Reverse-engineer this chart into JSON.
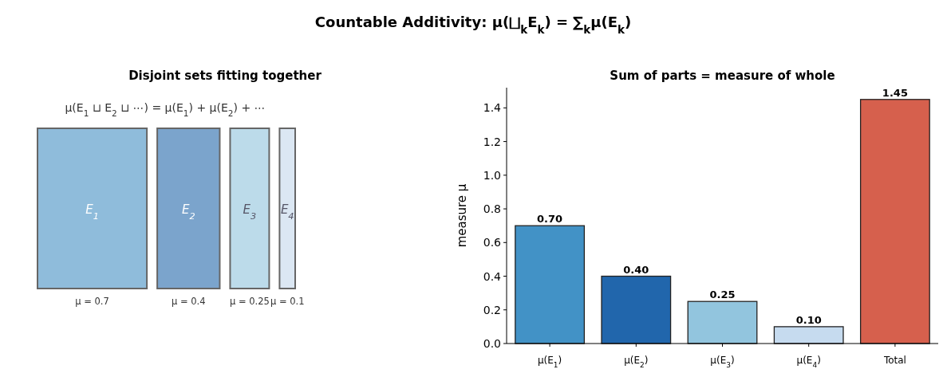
{
  "chart_data": [
    {
      "type": "other",
      "title": "Disjoint sets fitting together",
      "annotations": [
        "Countable Additivity: μ(⨆$_{k}$E$_{k}$) = ∑$_{k}$μ(E$_{k}$)",
        "μ(E$_{1}$ ⊔ E$_{2}$ ⊔ ⋯) = μ(E$_{1}$) + μ(E$_{2}$) + ⋯"
      ],
      "categories": [
        "E$_{1}$",
        "E$_{2}$",
        "E$_{3}$",
        "E$_{4}$"
      ],
      "values": [
        0.7,
        0.4,
        0.25,
        0.1
      ],
      "value_labels": [
        "μ = 0.7",
        "μ = 0.4",
        "μ = 0.25",
        "μ = 0.1"
      ],
      "colors": [
        "#8fbcdb",
        "#7ba4cc",
        "#bcdbea",
        "#dbe7f3"
      ]
    },
    {
      "type": "bar",
      "title": "Sum of parts = measure of whole",
      "ylabel": "measure μ",
      "categories": [
        "μ(E$_{1}$)",
        "μ(E$_{2}$)",
        "μ(E$_{3}$)",
        "μ(E$_{4}$)",
        "Total"
      ],
      "values": [
        0.7,
        0.4,
        0.25,
        0.1,
        1.45
      ],
      "value_labels": [
        "0.70",
        "0.40",
        "0.25",
        "0.10",
        "1.45"
      ],
      "colors": [
        "#4292c6",
        "#2166ac",
        "#92c5de",
        "#c6dbef",
        "#d6604d"
      ],
      "ylim": [
        0,
        1.52
      ],
      "yticks": [
        {
          "value": 0,
          "label": "0.0"
        },
        {
          "value": 0.2,
          "label": "0.2"
        },
        {
          "value": 0.4,
          "label": "0.4"
        },
        {
          "value": 0.6,
          "label": "0.6"
        },
        {
          "value": 0.8,
          "label": "0.8"
        },
        {
          "value": 1,
          "label": "1.0"
        },
        {
          "value": 1.2,
          "label": "1.2"
        },
        {
          "value": 1.4,
          "label": "1.4"
        }
      ],
      "grid": false
    }
  ]
}
